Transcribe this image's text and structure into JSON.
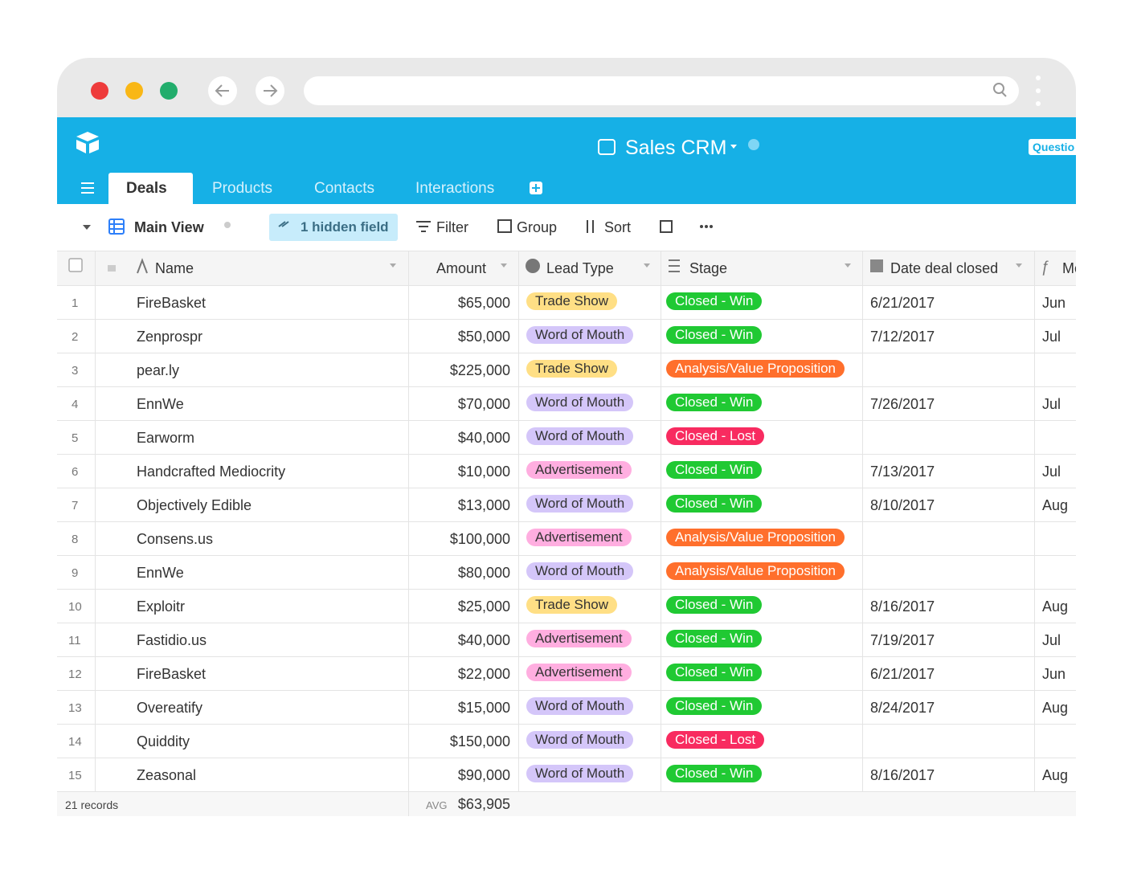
{
  "app": {
    "title": "Sales CRM",
    "help_button": "Questio"
  },
  "tabs": [
    "Deals",
    "Products",
    "Contacts",
    "Interactions"
  ],
  "toolbar": {
    "view": "Main View",
    "hidden": "1 hidden field",
    "filter": "Filter",
    "group": "Group",
    "sort": "Sort"
  },
  "columns": [
    "Name",
    "Amount",
    "Lead Type",
    "Stage",
    "Date deal closed",
    "Mo"
  ],
  "tag_colors": {
    "Trade Show": "#ffdf85",
    "Word of Mouth": "#d4c6f9",
    "Advertisement": "#ffaee0",
    "Closed - Win": "#20c933",
    "Closed - Lost": "#f82b60",
    "Analysis/Value Proposition": "#ff6f2c"
  },
  "rows": [
    {
      "num": 1,
      "name": "FireBasket",
      "amount": "$65,000",
      "lead_type": "Trade Show",
      "stage": "Closed - Win",
      "date": "6/21/2017",
      "month": "Jun"
    },
    {
      "num": 2,
      "name": "Zenprospr",
      "amount": "$50,000",
      "lead_type": "Word of Mouth",
      "stage": "Closed - Win",
      "date": "7/12/2017",
      "month": "Jul"
    },
    {
      "num": 3,
      "name": "pear.ly",
      "amount": "$225,000",
      "lead_type": "Trade Show",
      "stage": "Analysis/Value Proposition"
    },
    {
      "num": 4,
      "name": "EnnWe",
      "amount": "$70,000",
      "lead_type": "Word of Mouth",
      "stage": "Closed - Win",
      "date": "7/26/2017",
      "month": "Jul"
    },
    {
      "num": 5,
      "name": "Earworm",
      "amount": "$40,000",
      "lead_type": "Word of Mouth",
      "stage": "Closed - Lost"
    },
    {
      "num": 6,
      "name": "Handcrafted Mediocrity",
      "amount": "$10,000",
      "lead_type": "Advertisement",
      "stage": "Closed - Win",
      "date": "7/13/2017",
      "month": "Jul"
    },
    {
      "num": 7,
      "name": "Objectively Edible",
      "amount": "$13,000",
      "lead_type": "Word of Mouth",
      "stage": "Closed - Win",
      "date": "8/10/2017",
      "month": "Aug"
    },
    {
      "num": 8,
      "name": "Consens.us",
      "amount": "$100,000",
      "lead_type": "Advertisement",
      "stage": "Analysis/Value Proposition"
    },
    {
      "num": 9,
      "name": "EnnWe",
      "amount": "$80,000",
      "lead_type": "Word of Mouth",
      "stage": "Analysis/Value Proposition"
    },
    {
      "num": 10,
      "name": "Exploitr",
      "amount": "$25,000",
      "lead_type": "Trade Show",
      "stage": "Closed - Win",
      "date": "8/16/2017",
      "month": "Aug"
    },
    {
      "num": 11,
      "name": "Fastidio.us",
      "amount": "$40,000",
      "lead_type": "Advertisement",
      "stage": "Closed - Win",
      "date": "7/19/2017",
      "month": "Jul"
    },
    {
      "num": 12,
      "name": "FireBasket",
      "amount": "$22,000",
      "lead_type": "Advertisement",
      "stage": "Closed - Win",
      "date": "6/21/2017",
      "month": "Jun"
    },
    {
      "num": 13,
      "name": "Overeatify",
      "amount": "$15,000",
      "lead_type": "Word of Mouth",
      "stage": "Closed - Win",
      "date": "8/24/2017",
      "month": "Aug"
    },
    {
      "num": 14,
      "name": "Quiddity",
      "amount": "$150,000",
      "lead_type": "Word of Mouth",
      "stage": "Closed - Lost"
    },
    {
      "num": 15,
      "name": "Zeasonal",
      "amount": "$90,000",
      "lead_type": "Word of Mouth",
      "stage": "Closed - Win",
      "date": "8/16/2017",
      "month": "Aug"
    }
  ],
  "footer": {
    "records": "21 records",
    "agg_label": "AVG",
    "agg_value": "$63,905"
  }
}
